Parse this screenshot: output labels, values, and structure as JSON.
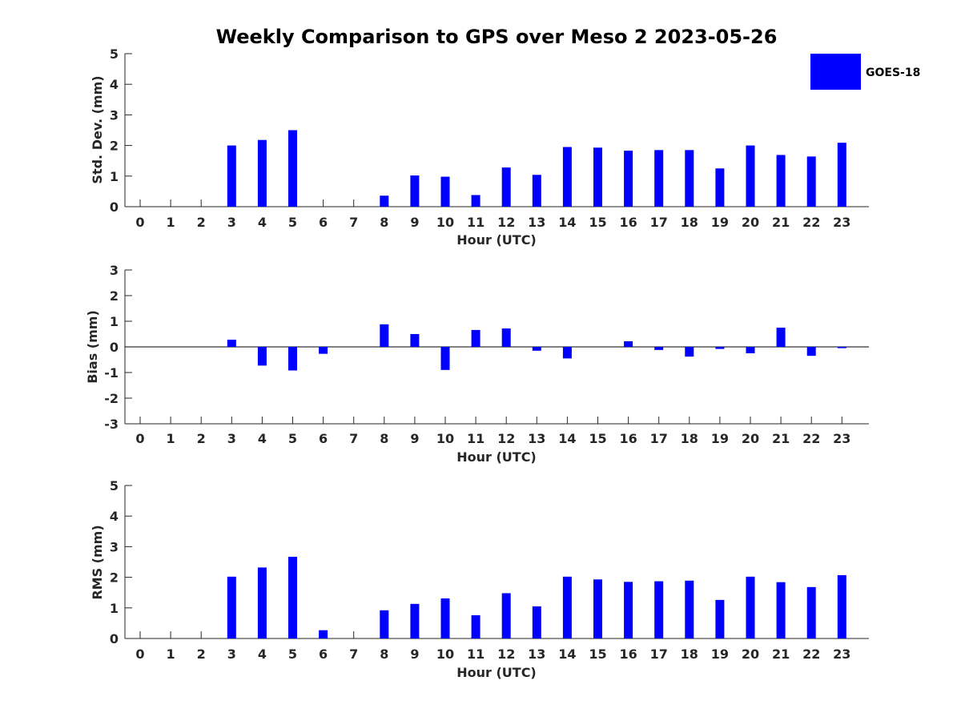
{
  "chart_data": {
    "type": "bar",
    "title": "Weekly Comparison to GPS over Meso 2 2023-05-26",
    "legend": {
      "label": "GOES-18",
      "color": "#0000ff",
      "placement": "top-right"
    },
    "bar_color": "#0000ff",
    "categories": [
      "0",
      "1",
      "2",
      "3",
      "4",
      "5",
      "6",
      "7",
      "8",
      "9",
      "10",
      "11",
      "12",
      "13",
      "14",
      "15",
      "16",
      "17",
      "18",
      "19",
      "20",
      "21",
      "22",
      "23"
    ],
    "panels": [
      {
        "key": "std",
        "ylabel": "Std. Dev. (mm)",
        "xlabel": "Hour (UTC)",
        "ylim": [
          0,
          5
        ],
        "yticks": [
          "0",
          "1",
          "2",
          "3",
          "4",
          "5"
        ],
        "values": [
          null,
          null,
          null,
          2.0,
          2.18,
          2.5,
          null,
          null,
          0.36,
          1.02,
          0.98,
          0.38,
          1.28,
          1.04,
          1.95,
          1.93,
          1.83,
          1.85,
          1.85,
          1.25,
          2.0,
          1.69,
          1.64,
          2.09
        ]
      },
      {
        "key": "bias",
        "ylabel": "Bias (mm)",
        "xlabel": "Hour (UTC)",
        "ylim": [
          -3,
          3
        ],
        "yticks": [
          "-3",
          "-2",
          "-1",
          "0",
          "1",
          "2",
          "3"
        ],
        "values": [
          null,
          null,
          null,
          0.28,
          -0.73,
          -0.92,
          -0.27,
          null,
          0.88,
          0.5,
          -0.9,
          0.66,
          0.72,
          -0.15,
          -0.45,
          null,
          0.22,
          -0.12,
          -0.38,
          -0.08,
          -0.25,
          0.75,
          -0.35,
          -0.05
        ]
      },
      {
        "key": "rms",
        "ylabel": "RMS (mm)",
        "xlabel": "Hour (UTC)",
        "ylim": [
          0,
          5
        ],
        "yticks": [
          "0",
          "1",
          "2",
          "3",
          "4",
          "5"
        ],
        "values": [
          null,
          null,
          null,
          2.02,
          2.32,
          2.67,
          0.27,
          null,
          0.92,
          1.13,
          1.31,
          0.76,
          1.48,
          1.05,
          2.02,
          1.93,
          1.85,
          1.87,
          1.89,
          1.26,
          2.02,
          1.84,
          1.68,
          2.07
        ]
      }
    ]
  }
}
